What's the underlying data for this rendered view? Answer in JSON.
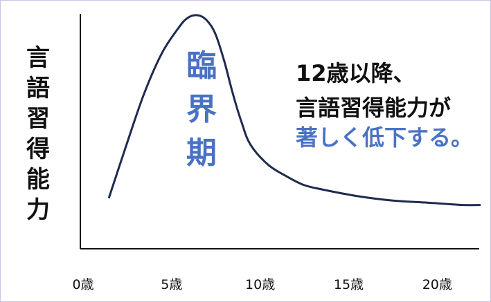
{
  "colors": {
    "curve": "#1e2a4f",
    "axis": "#111111",
    "accent": "#4a72c4",
    "text": "#111111",
    "border": "#c9c3e6"
  },
  "chart_data": {
    "type": "line",
    "title": "",
    "ylabel": "言語習得能力",
    "xlabel": "",
    "x_tick_labels": [
      "0歳",
      "5歳",
      "10歳",
      "15歳",
      "20歳"
    ],
    "x_ticks": [
      0,
      5,
      10,
      15,
      20
    ],
    "xlim": [
      0,
      23
    ],
    "ylim": [
      0,
      100
    ],
    "grid": false,
    "series": [
      {
        "x": [
          2,
          3,
          4,
          5,
          6,
          6.5,
          7,
          7.5,
          8,
          8.5,
          9,
          9.5,
          10,
          11,
          12,
          13,
          14,
          16,
          18,
          20,
          22,
          23
        ],
        "y": [
          18,
          42,
          65,
          83,
          95,
          99,
          100,
          98,
          92,
          80,
          65,
          52,
          42,
          33,
          28,
          24,
          22,
          19,
          17,
          16,
          15,
          15
        ]
      }
    ],
    "annotations": {
      "period_label": "臨界期",
      "note_lines": [
        "12歳以降、",
        "言語習得能力が"
      ],
      "note_accent": "著しく低下する。"
    }
  }
}
